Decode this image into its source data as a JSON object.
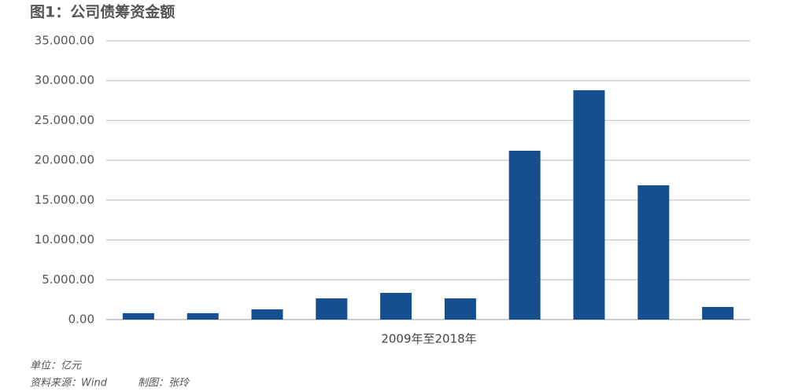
{
  "chart_data": {
    "type": "bar",
    "title": "图1：公司债筹资金额",
    "x_label": "2009年至2018年",
    "categories": [
      null,
      null,
      null,
      null,
      null,
      null,
      null,
      null,
      null,
      null
    ],
    "values": [
      800,
      800,
      1280,
      2660,
      3350,
      2660,
      21200,
      28800,
      16860,
      1580
    ],
    "color": "#154f8f",
    "ylim": [
      0,
      35000
    ],
    "yticks": [
      {
        "value": 0,
        "label": "0.00"
      },
      {
        "value": 5000,
        "label": "5.000.00"
      },
      {
        "value": 10000,
        "label": "10.000.00"
      },
      {
        "value": 15000,
        "label": "15.000.00"
      },
      {
        "value": 20000,
        "label": "20.000.00"
      },
      {
        "value": 25000,
        "label": "25.000.00"
      },
      {
        "value": 30000,
        "label": "30.000.00"
      },
      {
        "value": 35000,
        "label": "35.000.00"
      }
    ],
    "grid": true,
    "notes": [
      "单位：亿元",
      "资料来源：Wind",
      "制图：张玲"
    ]
  }
}
